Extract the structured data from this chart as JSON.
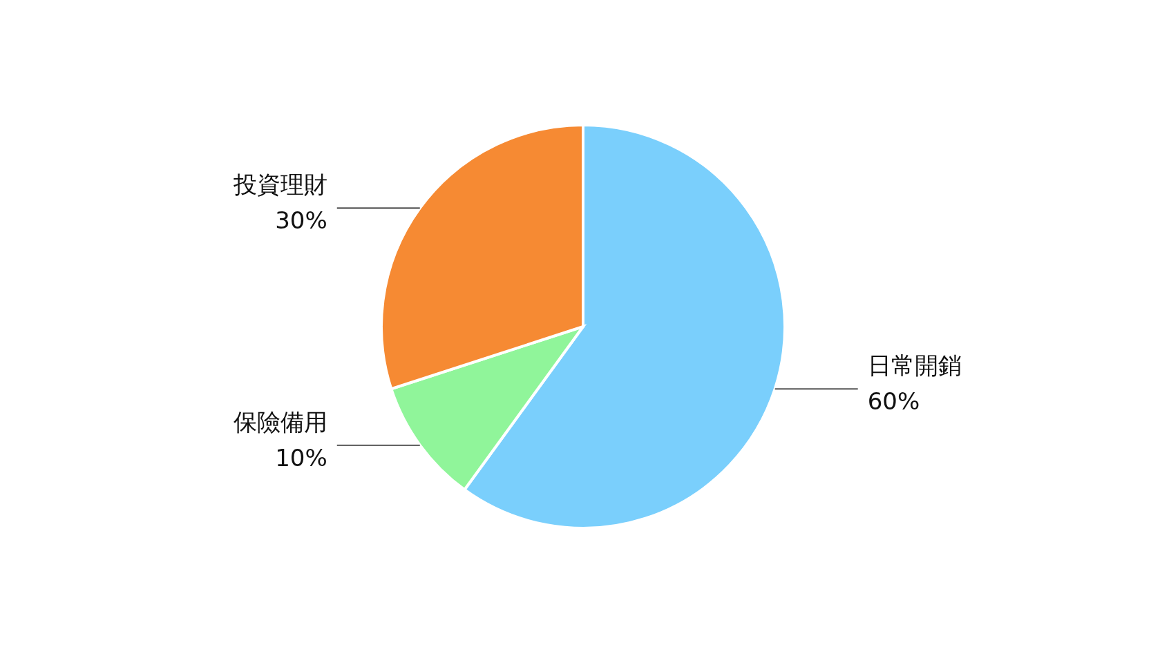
{
  "chart_data": {
    "type": "pie",
    "categories": [
      "日常開銷",
      "保險備用",
      "投資理財"
    ],
    "values": [
      60,
      10,
      30
    ],
    "colors": [
      "#7acffc",
      "#90f59a",
      "#f68a33"
    ],
    "value_labels": [
      "60%",
      "10%",
      "30%"
    ]
  }
}
